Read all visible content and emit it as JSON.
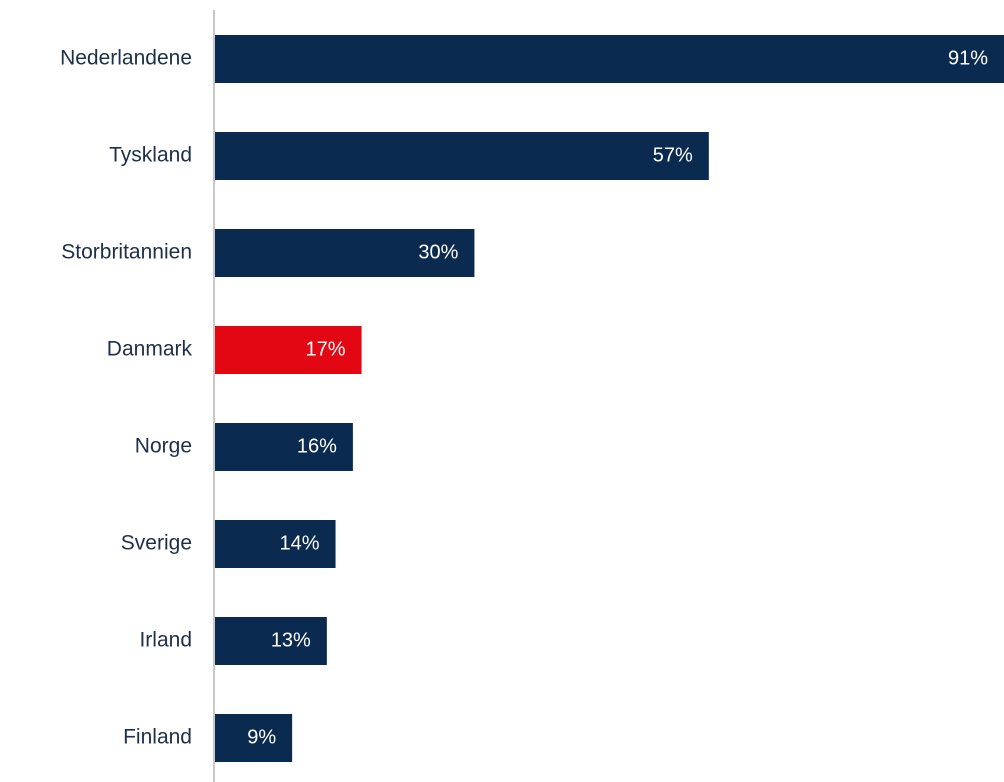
{
  "chart_data": {
    "type": "bar",
    "orientation": "horizontal",
    "categories": [
      "Nederlandene",
      "Tyskland",
      "Storbritannien",
      "Danmark",
      "Norge",
      "Sverige",
      "Irland",
      "Finland"
    ],
    "values": [
      91,
      57,
      30,
      17,
      16,
      14,
      13,
      9
    ],
    "value_labels": [
      "91%",
      "57%",
      "30%",
      "17%",
      "16%",
      "14%",
      "13%",
      "9%"
    ],
    "highlighted_category": "Danmark",
    "colors": {
      "bar": "#0a2b4f",
      "highlight": "#e30613",
      "axis": "#c8c8c8",
      "category_text": "#1f2f49",
      "value_text": "#ffffff"
    },
    "xlim": [
      0,
      91
    ],
    "grid": false,
    "legend": "none",
    "title": "",
    "xlabel": "",
    "ylabel": ""
  }
}
